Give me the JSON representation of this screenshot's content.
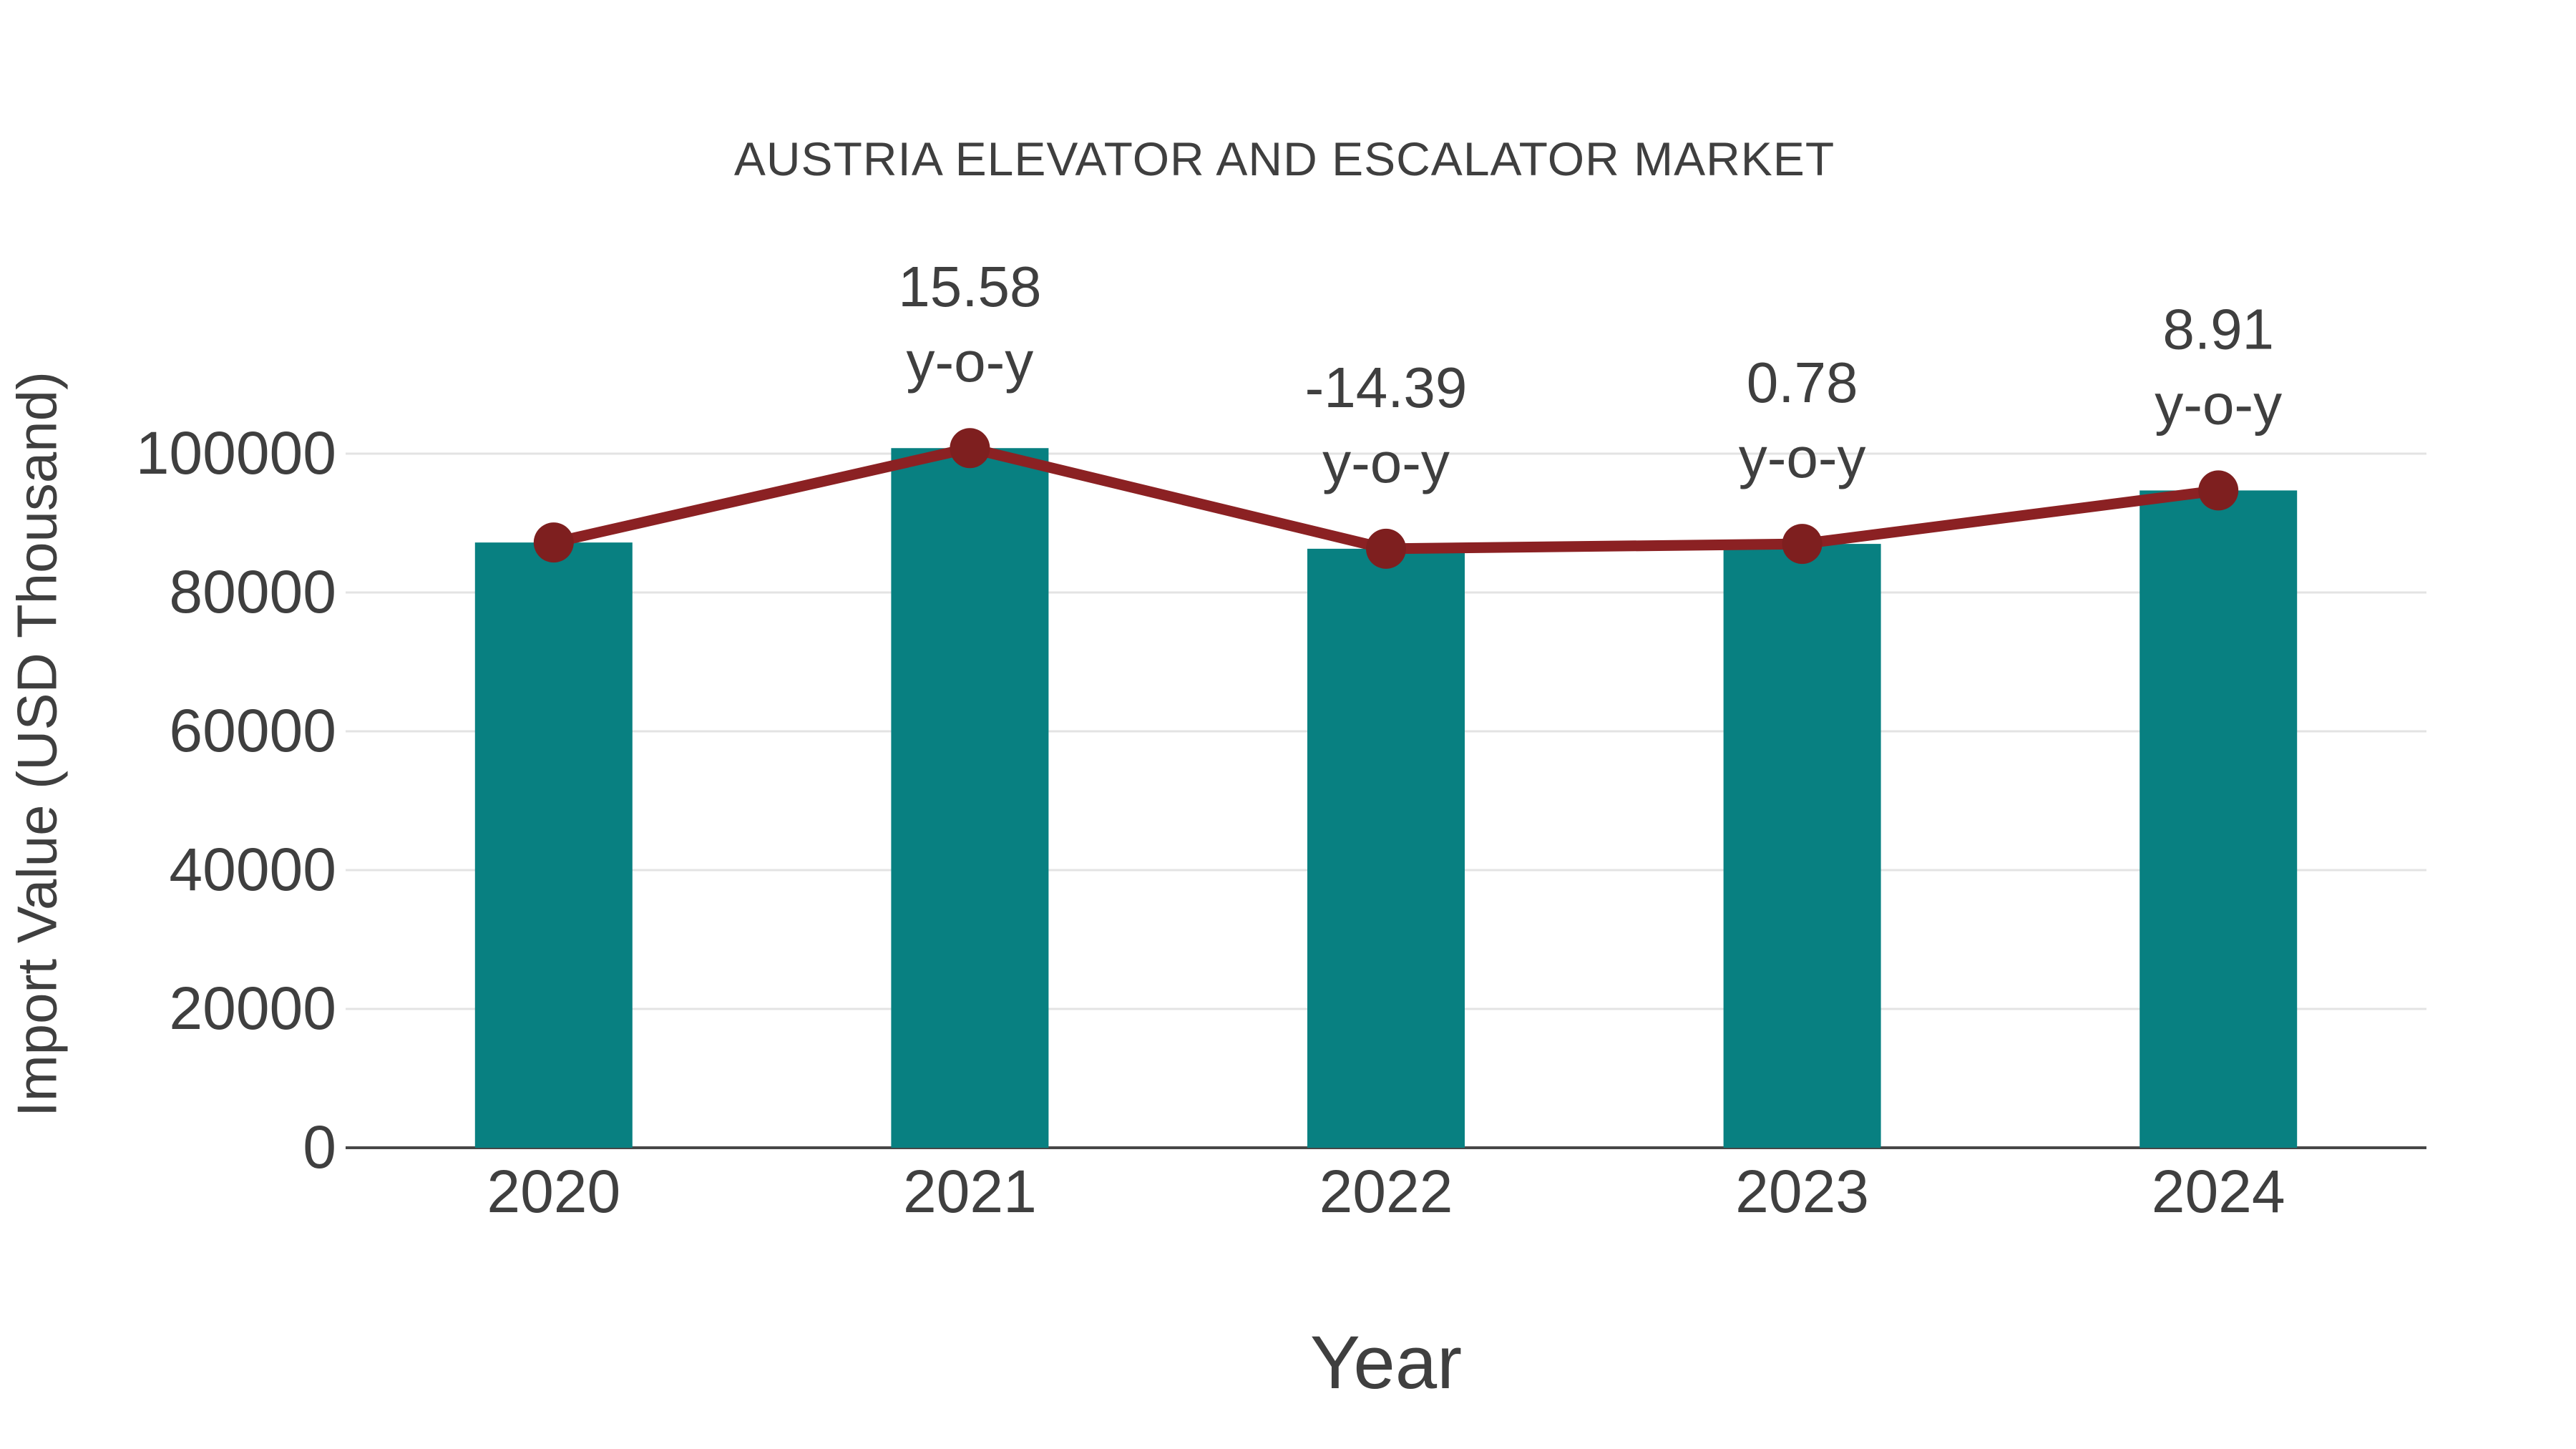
{
  "chart_data": {
    "type": "bar",
    "title": "AUSTRIA ELEVATOR AND ESCALATOR MARKET",
    "xlabel": "Year",
    "ylabel": "Import Value (USD Thousand)",
    "categories": [
      "2020",
      "2021",
      "2022",
      "2023",
      "2024"
    ],
    "series": [
      {
        "name": "Import Value (USD Thousand)",
        "type": "bar",
        "values": [
          87200,
          100800,
          86300,
          87000,
          94700
        ],
        "color": "#088081"
      },
      {
        "name": "y-o-y",
        "type": "line",
        "values": [
          87200,
          100800,
          86300,
          87000,
          94700
        ],
        "color": "#8b2123",
        "marker_color": "#7e1f1f"
      }
    ],
    "point_annotations": [
      {
        "category": "2021",
        "lines": [
          "15.58",
          "y-o-y"
        ]
      },
      {
        "category": "2022",
        "lines": [
          "-14.39",
          "y-o-y"
        ]
      },
      {
        "category": "2023",
        "lines": [
          "0.78",
          "y-o-y"
        ]
      },
      {
        "category": "2024",
        "lines": [
          "8.91",
          "y-o-y"
        ]
      }
    ],
    "yticks": [
      0,
      20000,
      40000,
      60000,
      80000,
      100000
    ],
    "ylim": [
      0,
      110000
    ],
    "grid": true,
    "legend": false,
    "text_color": "#3f3f3f",
    "grid_color": "#e3e3e3",
    "axis_color": "#474747",
    "background": "#ffffff"
  }
}
